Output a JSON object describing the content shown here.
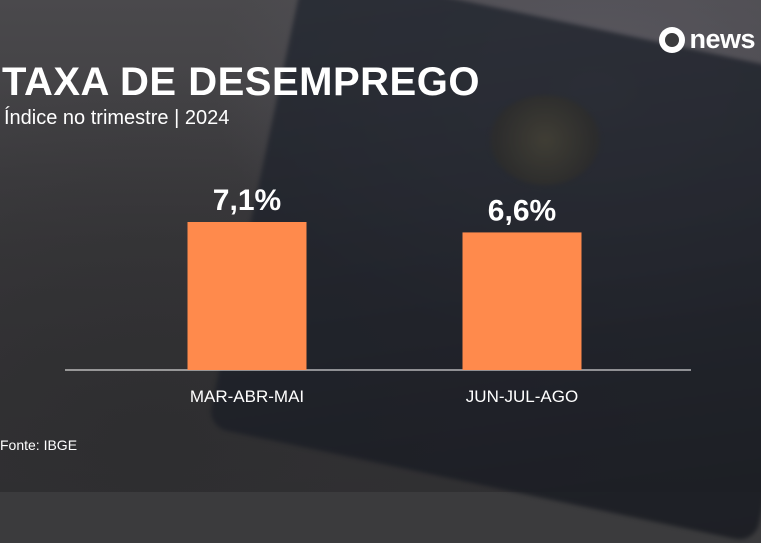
{
  "brand": {
    "logo_text": "news"
  },
  "title": "TAXA DE DESEMPREGO",
  "subtitle": "Índice no trimestre | 2024",
  "source": "Fonte: IBGE",
  "colors": {
    "bar": "#ff8a4c",
    "text": "#ffffff",
    "baseline": "#ffffff"
  },
  "chart_data": {
    "type": "bar",
    "categories": [
      "MAR-ABR-MAI",
      "JUN-JUL-AGO"
    ],
    "values": [
      7.1,
      6.6
    ],
    "value_labels": [
      "7,1%",
      "6,6%"
    ],
    "title": "TAXA DE DESEMPREGO",
    "subtitle": "Índice no trimestre | 2024",
    "ylim": [
      0,
      7.1
    ],
    "grid": false,
    "legend": "none"
  }
}
